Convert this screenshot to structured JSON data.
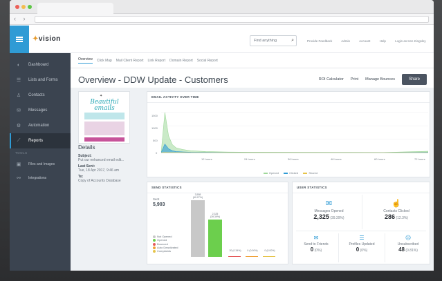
{
  "header": {
    "logo": "vision",
    "search_placeholder": "Find anything",
    "links": [
      "Provide Feedback",
      "Admin",
      "Account",
      "Help",
      "Login as Ken Kingsley"
    ]
  },
  "sidebar": {
    "items": [
      {
        "label": "Dashboard",
        "icon": "palette-icon"
      },
      {
        "label": "Lists and Forms",
        "icon": "list-icon"
      },
      {
        "label": "Contacts",
        "icon": "user-icon"
      },
      {
        "label": "Messages",
        "icon": "envelope-icon"
      },
      {
        "label": "Automation",
        "icon": "gear-icon"
      },
      {
        "label": "Reports",
        "icon": "chart-icon"
      }
    ],
    "section": "TOOLS",
    "tools": [
      {
        "label": "Files and Images",
        "icon": "image-icon"
      },
      {
        "label": "Integrations",
        "icon": "link-icon"
      }
    ]
  },
  "tabs": [
    "Overview",
    "Click Map",
    "Mail Client Report",
    "Link Report",
    "Domain Report",
    "Social Report"
  ],
  "page": {
    "title": "Overview - DDW Update - Customers",
    "actions": [
      "ROI Calculator",
      "Print",
      "Manage Bounces"
    ],
    "share": "Share"
  },
  "thumbnail": {
    "script_text": "Beautiful emails"
  },
  "details": {
    "heading": "Details",
    "subject_label": "Subject:",
    "subject_value": "Put our enhanced email edit...",
    "last_sent_label": "Last Sent:",
    "last_sent_value": "Tue, 18 Apr 2017, 9:46 am",
    "to_label": "To:",
    "to_value": "Copy of Accounts Database"
  },
  "activity": {
    "title": "EMAIL ACTIVITY OVER TIME",
    "yticks": [
      "1500",
      "1000",
      "500",
      "0"
    ],
    "xticks": [
      "12 hours",
      "24 hours",
      "36 hours",
      "48 hours",
      "60 hours",
      "72 hours"
    ],
    "legend": [
      {
        "label": "Opened",
        "color": "#9fd89a"
      },
      {
        "label": "Clicked",
        "color": "#2f9bd5"
      },
      {
        "label": "Shared",
        "color": "#e6c44a"
      }
    ]
  },
  "chart_data": {
    "type": "area",
    "x": [
      0,
      1,
      2,
      3,
      4,
      6,
      8,
      12,
      18,
      24,
      36,
      48,
      60,
      72
    ],
    "series": [
      {
        "name": "Opened",
        "values": [
          0,
          1500,
          620,
          300,
          180,
          110,
          70,
          40,
          20,
          15,
          10,
          8,
          6,
          50
        ]
      },
      {
        "name": "Clicked",
        "values": [
          0,
          320,
          140,
          70,
          40,
          25,
          15,
          10,
          5,
          3,
          2,
          2,
          1,
          10
        ]
      },
      {
        "name": "Shared",
        "values": [
          0,
          5,
          3,
          2,
          1,
          1,
          0,
          0,
          0,
          0,
          0,
          0,
          0,
          0
        ]
      }
    ],
    "ylim": [
      0,
      1700
    ],
    "xlim": [
      0,
      72
    ]
  },
  "send_stats": {
    "title": "SEND STATISTICS",
    "sent_label": "Sent",
    "sent_value": "5,903",
    "legend": [
      {
        "label": "Not Opened",
        "color": "#c8c8c8"
      },
      {
        "label": "Opened",
        "color": "#6ccf4d"
      },
      {
        "label": "Bounced",
        "color": "#e55a5a"
      },
      {
        "label": "Auto Deactivated",
        "color": "#f0a23a"
      },
      {
        "label": "Complaints",
        "color": "#e6c44a"
      }
    ],
    "bars": [
      {
        "label": "3,558\n(60.27%)",
        "fraction": 0.6027,
        "color": "#c8c8c8"
      },
      {
        "label": "2,325\n(39.39%)",
        "fraction": 0.3939,
        "color": "#6ccf4d"
      },
      {
        "label": "20 (0.34%)",
        "fraction": 0.0034,
        "color": "#e55a5a"
      },
      {
        "label": "0 (0.00%)",
        "fraction": 0.0,
        "color": "#f0a23a"
      },
      {
        "label": "0 (0.00%)",
        "fraction": 0.0,
        "color": "#e6c44a"
      }
    ]
  },
  "user_stats": {
    "title": "USER STATISTICS",
    "messages_opened_label": "Messages Opened",
    "messages_opened_value": "2,325",
    "messages_opened_pct": "(39.39%)",
    "contacts_clicked_label": "Contacts Clicked",
    "contacts_clicked_value": "286",
    "contacts_clicked_pct": "(12.3%)",
    "send_to_friends_label": "Send to Friends",
    "send_to_friends_value": "0",
    "send_to_friends_pct": "(0%)",
    "profiles_updated_label": "Profiles Updated",
    "profiles_updated_value": "0",
    "profiles_updated_pct": "(0%)",
    "unsubscribed_label": "Unsubscribed",
    "unsubscribed_value": "48",
    "unsubscribed_pct": "(0.81%)"
  }
}
